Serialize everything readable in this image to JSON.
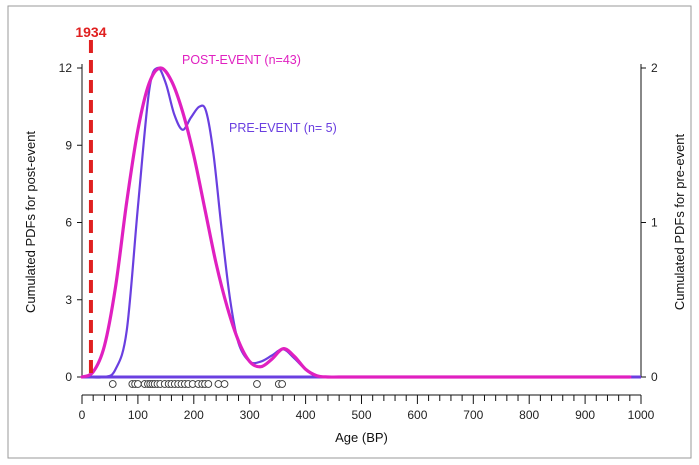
{
  "chart_data": {
    "type": "line",
    "xlabel": "Age (BP)",
    "ylabel_left": "Cumulated PDFs for post-event",
    "ylabel_right": "Cumulated PDFs for pre-event",
    "xlim": [
      0,
      1000
    ],
    "ylim_left": [
      0,
      12
    ],
    "ylim_right": [
      0,
      2
    ],
    "x_ticks": [
      0,
      100,
      200,
      300,
      400,
      500,
      600,
      700,
      800,
      900,
      1000
    ],
    "x_tick_labels": [
      "0",
      "100",
      "200",
      "300",
      "400",
      "500",
      "600",
      "700",
      "800",
      "900",
      "1000"
    ],
    "y_left_ticks": [
      0,
      3,
      6,
      9,
      12
    ],
    "y_left_tick_labels": [
      "0",
      "3",
      "6",
      "9",
      "12"
    ],
    "y_right_ticks": [
      0,
      1,
      2
    ],
    "y_right_tick_labels": [
      "0",
      "1",
      "2"
    ],
    "grid": false,
    "series": [
      {
        "name": "POST-EVENT (n=43)",
        "axis": "left",
        "color": "#e020c0",
        "x": [
          0,
          20,
          40,
          60,
          80,
          100,
          120,
          140,
          160,
          180,
          200,
          220,
          240,
          260,
          280,
          300,
          320,
          340,
          360,
          380,
          400,
          420,
          440,
          460,
          500,
          600,
          700,
          800,
          900,
          980
        ],
        "y": [
          0,
          0.2,
          1.2,
          3.5,
          6.8,
          9.6,
          11.4,
          12.0,
          11.5,
          10.3,
          8.6,
          6.5,
          4.4,
          2.7,
          1.4,
          0.6,
          0.4,
          0.7,
          1.1,
          0.8,
          0.3,
          0.05,
          0,
          0,
          0,
          0,
          0,
          0,
          0,
          0
        ]
      },
      {
        "name": "PRE-EVENT (n= 5)",
        "axis": "right",
        "color": "#6a3fe0",
        "x": [
          0,
          40,
          60,
          80,
          100,
          120,
          135,
          150,
          165,
          180,
          195,
          210,
          222,
          235,
          250,
          265,
          280,
          300,
          320,
          340,
          360,
          380,
          400,
          420,
          440,
          500,
          600,
          700,
          800,
          900,
          980
        ],
        "y": [
          0,
          0,
          0.05,
          0.3,
          1.1,
          1.85,
          2.0,
          1.9,
          1.7,
          1.6,
          1.68,
          1.75,
          1.72,
          1.45,
          0.95,
          0.5,
          0.22,
          0.1,
          0.1,
          0.14,
          0.18,
          0.12,
          0.05,
          0.01,
          0,
          0,
          0,
          0,
          0,
          0,
          0
        ]
      }
    ],
    "sample_ages": [
      55,
      90,
      95,
      100,
      112,
      118,
      122,
      126,
      130,
      135,
      140,
      148,
      155,
      160,
      166,
      172,
      178,
      184,
      190,
      198,
      208,
      215,
      220,
      226,
      244,
      255,
      313,
      352,
      358
    ],
    "event": {
      "label": "1934",
      "age": 16,
      "color": "#e02020"
    },
    "annotations": [
      {
        "text": "POST-EVENT (n=43)",
        "color": "#e020c0"
      },
      {
        "text": "PRE-EVENT (n= 5)",
        "color": "#6a3fe0"
      }
    ]
  }
}
